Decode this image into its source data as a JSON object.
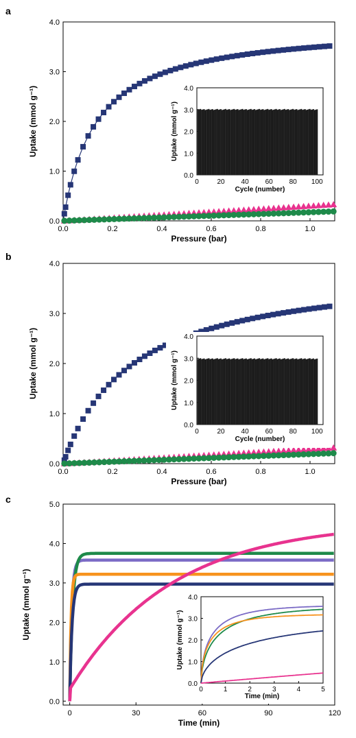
{
  "panels": [
    {
      "letter": "a"
    },
    {
      "letter": "b"
    },
    {
      "letter": "c"
    }
  ],
  "chart_data": [
    {
      "id": "a",
      "type": "scatter",
      "xlabel": "Pressure (bar)",
      "ylabel": "Uptake (mmol g⁻¹)",
      "xlim": [
        0,
        1.1
      ],
      "ylim": [
        0,
        4.0
      ],
      "xticks": [
        "0.0",
        "0.2",
        "0.4",
        "0.6",
        "0.8",
        "1.0"
      ],
      "yticks": [
        "0.0",
        "1.0",
        "2.0",
        "3.0",
        "4.0"
      ],
      "series": [
        {
          "marker": "square",
          "color": "#263676",
          "model": "langmuir",
          "qmax": 3.95,
          "b": 7.5,
          "n": 55,
          "connected": true
        },
        {
          "marker": "triangle",
          "color": "#e8338f",
          "model": "linear",
          "slope": 0.33,
          "n": 55
        },
        {
          "marker": "circle",
          "color": "#1e8a4a",
          "model": "linear",
          "slope": 0.19,
          "n": 55
        }
      ],
      "inset": {
        "type": "bar",
        "xlabel": "Cycle (number)",
        "ylabel": "Uptake (mmol g⁻¹)",
        "xlim": [
          0,
          105
        ],
        "ylim": [
          0,
          4.0
        ],
        "xticks": [
          "0",
          "20",
          "40",
          "60",
          "80",
          "100"
        ],
        "yticks": [
          "0.0",
          "1.0",
          "2.0",
          "3.0",
          "4.0"
        ],
        "bar_value": 3.0,
        "cycles": 100
      }
    },
    {
      "id": "b",
      "type": "scatter",
      "xlabel": "Pressure (bar)",
      "ylabel": "Uptake (mmol g⁻¹)",
      "xlim": [
        0,
        1.1
      ],
      "ylim": [
        0,
        4.0
      ],
      "xticks": [
        "0.0",
        "0.2",
        "0.4",
        "0.6",
        "0.8",
        "1.0"
      ],
      "yticks": [
        "0.0",
        "1.0",
        "2.0",
        "3.0",
        "4.0"
      ],
      "series": [
        {
          "marker": "square",
          "color": "#263676",
          "model": "langmuir",
          "qmax": 3.95,
          "b": 3.6,
          "n": 55,
          "connected": false
        },
        {
          "marker": "triangle",
          "color": "#e8338f",
          "model": "linear",
          "slope": 0.32,
          "n": 55
        },
        {
          "marker": "circle",
          "color": "#1e8a4a",
          "model": "linear",
          "slope": 0.21,
          "n": 55
        }
      ],
      "inset": {
        "type": "bar",
        "xlabel": "Cycle (number)",
        "ylabel": "Uptake (mmol g⁻¹)",
        "xlim": [
          0,
          105
        ],
        "ylim": [
          0,
          4.0
        ],
        "xticks": [
          "0",
          "20",
          "40",
          "60",
          "80",
          "100"
        ],
        "yticks": [
          "0.0",
          "1.0",
          "2.0",
          "3.0",
          "4.0"
        ],
        "bar_value": 2.97,
        "cycles": 100
      }
    },
    {
      "id": "c",
      "type": "line",
      "xlabel": "Time (min)",
      "ylabel": "Uptake (mmol g⁻¹)",
      "xlim": [
        -3,
        120
      ],
      "ylim": [
        -0.1,
        5.0
      ],
      "xticks": [
        "0",
        "30",
        "60",
        "90",
        "120"
      ],
      "yticks": [
        "0.0",
        "1.0",
        "2.0",
        "3.0",
        "4.0",
        "5.0"
      ],
      "series": [
        {
          "color": "#7b6bc6",
          "plateau": 3.58,
          "tau": 0.9
        },
        {
          "color": "#1e8a4a",
          "plateau": 3.75,
          "tau": 1.3
        },
        {
          "color": "#f7931e",
          "plateau": 3.22,
          "tau": 0.6
        },
        {
          "color": "#263676",
          "plateau": 2.97,
          "tau": 1.0
        },
        {
          "color": "#e8338f",
          "plateau": 4.55,
          "tau": 46,
          "offset": 0.3
        }
      ],
      "inset": {
        "type": "line",
        "xlabel": "Time (min)",
        "ylabel": "Uptake (mmol g⁻¹)",
        "xlim": [
          0,
          5
        ],
        "ylim": [
          0,
          4.0
        ],
        "xticks": [
          "0",
          "1",
          "2",
          "3",
          "4",
          "5"
        ],
        "yticks": [
          "0.0",
          "1.0",
          "2.0",
          "3.0",
          "4.0"
        ],
        "series": [
          {
            "color": "#7b6bc6",
            "plateau": 3.62,
            "tau": 0.65
          },
          {
            "color": "#1e8a4a",
            "plateau": 3.58,
            "tau": 0.85
          },
          {
            "color": "#f7931e",
            "plateau": 3.2,
            "tau": 0.6
          },
          {
            "color": "#263676",
            "plateau": 3.0,
            "tau": 1.6
          },
          {
            "color": "#e8338f",
            "plateau": 4.55,
            "tau": 46,
            "offset": 0.0
          }
        ]
      }
    }
  ]
}
